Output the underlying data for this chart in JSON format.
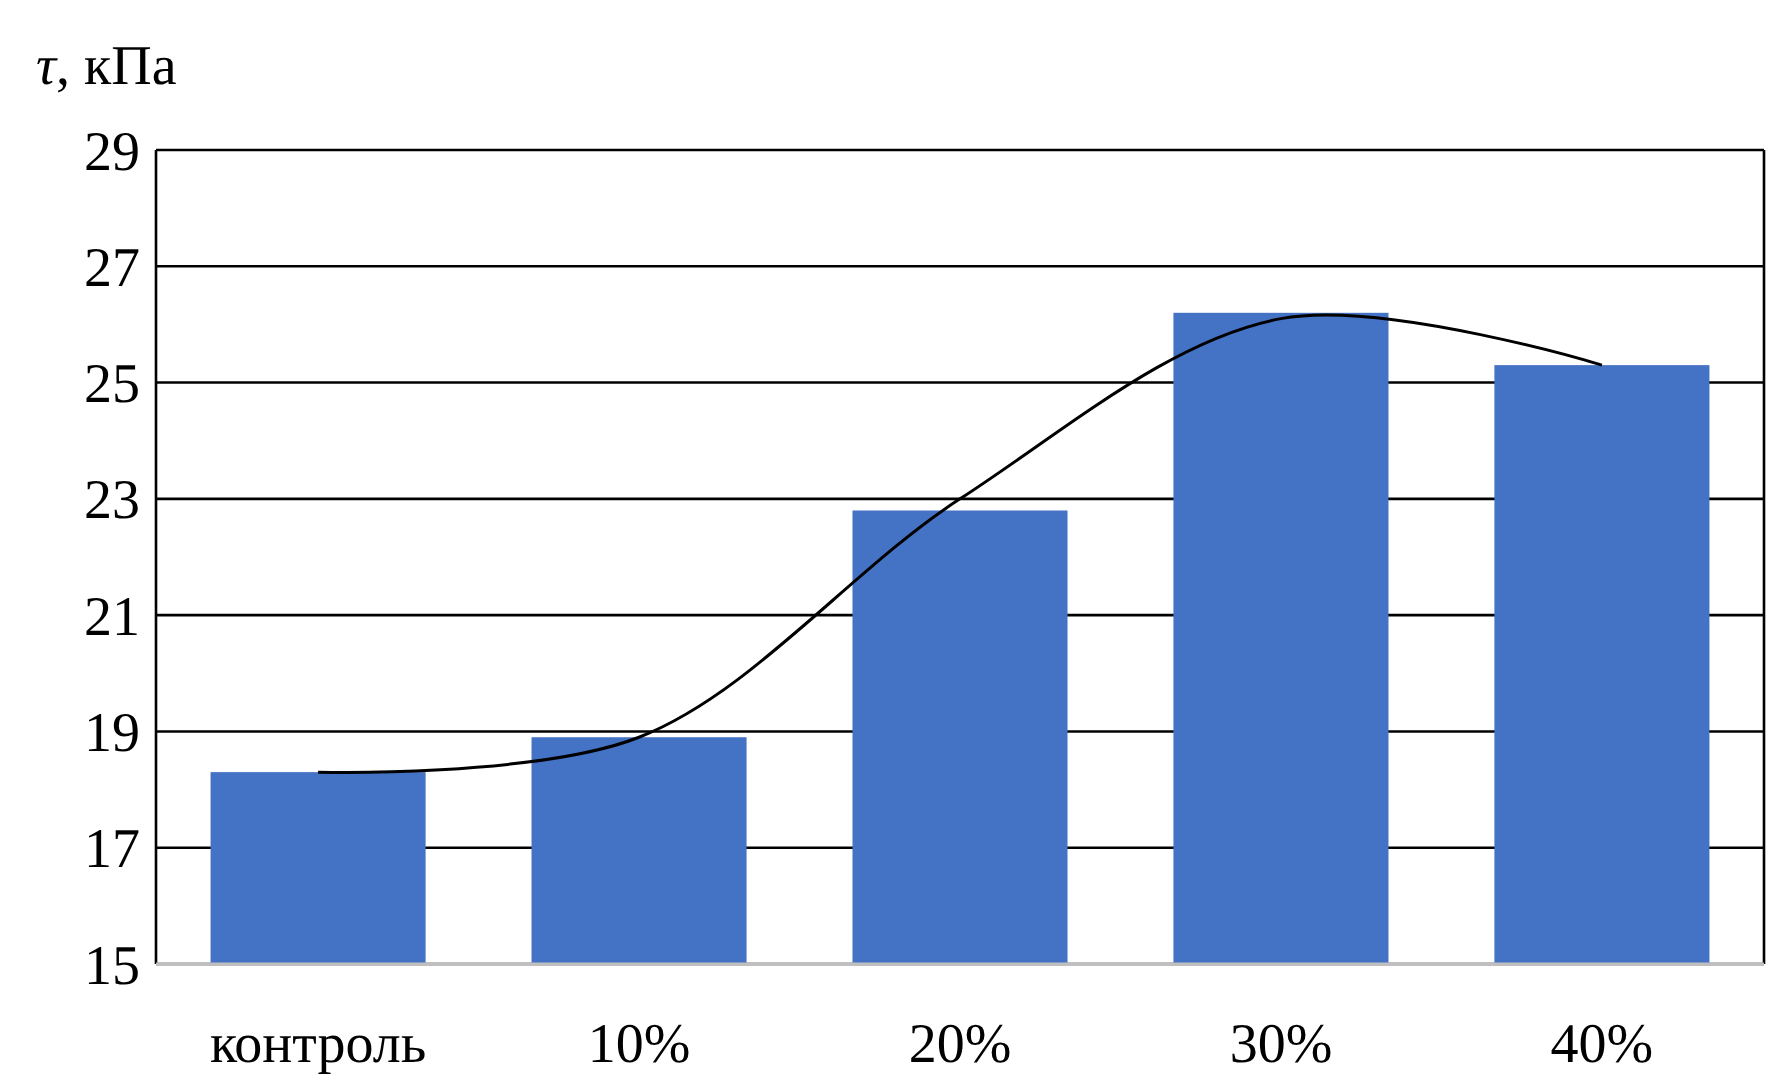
{
  "chart_data": {
    "type": "bar",
    "ylabel": "τ, кПа",
    "categories": [
      "контроль",
      "10%",
      "20%",
      "30%",
      "40%"
    ],
    "series": [
      {
        "color": "#4472c4",
        "values": [
          18.3,
          18.9,
          22.8,
          26.2,
          25.3
        ]
      },
      {
        "type": "line",
        "color": "#000000",
        "values": [
          18.3,
          18.9,
          23.0,
          26.1,
          25.3
        ]
      }
    ],
    "ylim": [
      15,
      29
    ],
    "yticks": [
      15,
      17,
      19,
      21,
      23,
      25,
      27,
      29
    ],
    "grid": "y"
  }
}
